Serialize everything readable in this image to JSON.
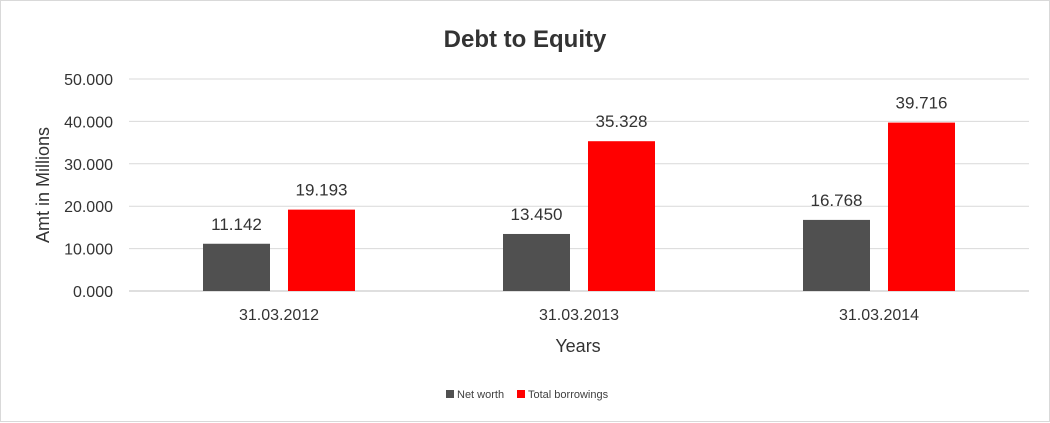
{
  "chart_data": {
    "type": "bar",
    "title": "Debt to Equity",
    "xlabel": "Years",
    "ylabel": "Amt in Millions",
    "categories": [
      "31.03.2012",
      "31.03.2013",
      "31.03.2014"
    ],
    "series": [
      {
        "name": "Net worth",
        "color": "#505050",
        "values": [
          11.142,
          13.45,
          16.768
        ],
        "labels": [
          "11.142",
          "13.450",
          "16.768"
        ]
      },
      {
        "name": "Total borrowings",
        "color": "#ff0000",
        "values": [
          19.193,
          35.328,
          39.716
        ],
        "labels": [
          "19.193",
          "35.328",
          "39.716"
        ]
      }
    ],
    "ylim": [
      0,
      50
    ],
    "yticks": [
      0,
      10,
      20,
      30,
      40,
      50
    ],
    "ytick_labels": [
      "0.000",
      "10.000",
      "20.000",
      "30.000",
      "40.000",
      "50.000"
    ],
    "grid": true,
    "legend": "bottom-center"
  }
}
